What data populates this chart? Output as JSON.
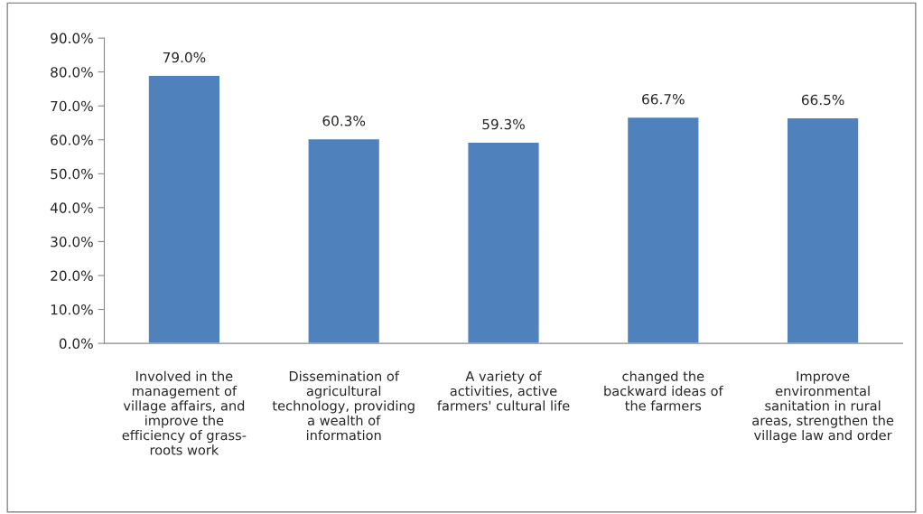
{
  "chart_data": {
    "type": "bar",
    "categories": [
      "Involved in the\nmanagement of\nvillage affairs, and\nimprove the\nefficiency of grass-\nroots work",
      "Dissemination of\nagricultural\ntechnology, providing\na wealth of\ninformation",
      "A variety of\nactivities, active\nfarmers' cultural life",
      "changed the\nbackward ideas of\nthe farmers",
      "Improve\nenvironmental\nsanitation in rural\nareas, strengthen the\nvillage law and order"
    ],
    "values": [
      79.0,
      60.3,
      59.3,
      66.7,
      66.5
    ],
    "value_labels": [
      "79.0%",
      "60.3%",
      "59.3%",
      "66.7%",
      "66.5%"
    ],
    "color": "#4f81bd",
    "ylim": [
      0,
      90
    ],
    "yticks": [
      {
        "value": 0,
        "label": "0.0%"
      },
      {
        "value": 10,
        "label": "10.0%"
      },
      {
        "value": 20,
        "label": "20.0%"
      },
      {
        "value": 30,
        "label": "30.0%"
      },
      {
        "value": 40,
        "label": "40.0%"
      },
      {
        "value": 50,
        "label": "50.0%"
      },
      {
        "value": 60,
        "label": "60.0%"
      },
      {
        "value": 70,
        "label": "70.0%"
      },
      {
        "value": 80,
        "label": "80.0%"
      },
      {
        "value": 90,
        "label": "90.0%"
      }
    ],
    "grid": false,
    "legend": false
  }
}
